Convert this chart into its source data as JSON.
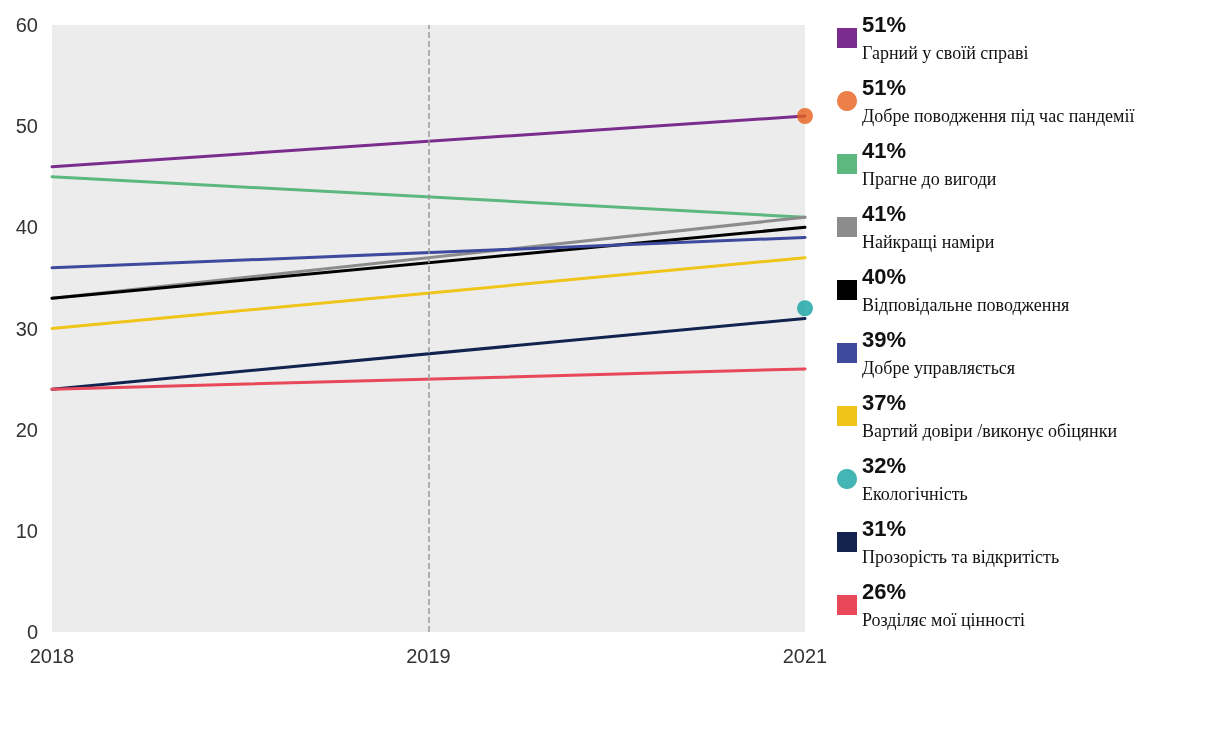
{
  "chart_data": {
    "type": "line",
    "categories": [
      "2018",
      "2019",
      "2021"
    ],
    "ylim": [
      0,
      60
    ],
    "yticks": [
      0,
      10,
      20,
      30,
      40,
      50,
      60
    ],
    "grid": false,
    "legend": "right",
    "line_style": "solid",
    "ref_lines": [
      {
        "axis": "x",
        "value": "2019",
        "color": "#999999",
        "line_style": "dashed"
      }
    ],
    "annotations": [
      "51%",
      "51%",
      "41%",
      "41%",
      "40%",
      "39%",
      "37%",
      "32%",
      "31%",
      "26%"
    ],
    "series": [
      {
        "name": "Гарний у своїй справі",
        "color": "#7b2d8e",
        "marker": "none",
        "values": [
          46,
          null,
          51
        ]
      },
      {
        "name": "Добре поводження під час пандемії",
        "type": "scatter",
        "color": "#e8601c",
        "marker": "circle",
        "values": [
          null,
          null,
          51
        ]
      },
      {
        "name": "Прагне до вигоди",
        "color": "#5cb87e",
        "marker": "none",
        "values": [
          45,
          null,
          41
        ]
      },
      {
        "name": "Найкращі наміри",
        "color": "#8c8c8c",
        "marker": "none",
        "values": [
          33,
          null,
          41
        ]
      },
      {
        "name": "Відповідальне поводження",
        "color": "#000000",
        "marker": "none",
        "values": [
          33,
          null,
          40
        ]
      },
      {
        "name": "Добре управляється",
        "color": "#3d4a9e",
        "marker": "none",
        "values": [
          36,
          null,
          39
        ]
      },
      {
        "name": "Вартий довіри /виконує обіцянки",
        "color": "#f0c419",
        "marker": "none",
        "values": [
          30,
          null,
          37
        ]
      },
      {
        "name": "Екологічність",
        "type": "scatter",
        "color": "#14a3a3",
        "marker": "circle",
        "values": [
          null,
          null,
          32
        ]
      },
      {
        "name": "Прозорість та відкритість",
        "color": "#13234f",
        "marker": "none",
        "values": [
          24,
          null,
          31
        ]
      },
      {
        "name": "Розділяє мої цінності",
        "color": "#e8485a",
        "marker": "none",
        "values": [
          24,
          null,
          26
        ]
      }
    ]
  }
}
